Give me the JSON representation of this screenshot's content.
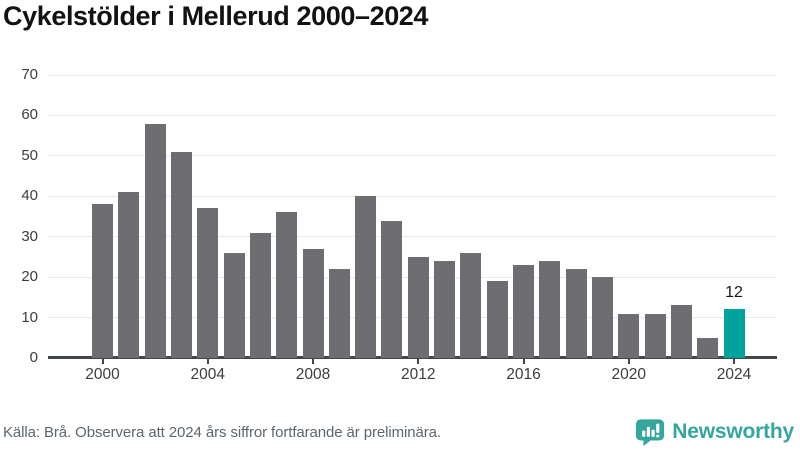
{
  "chart_data": {
    "type": "bar",
    "title": "Cykelstölder i Mellerud 2000–2024",
    "categories": [
      2000,
      2001,
      2002,
      2003,
      2004,
      2005,
      2006,
      2007,
      2008,
      2009,
      2010,
      2011,
      2012,
      2013,
      2014,
      2015,
      2016,
      2017,
      2018,
      2019,
      2020,
      2021,
      2022,
      2023,
      2024
    ],
    "values": [
      38,
      41,
      58,
      51,
      37,
      26,
      31,
      36,
      27,
      22,
      40,
      34,
      25,
      24,
      26,
      19,
      23,
      24,
      22,
      20,
      11,
      11,
      13,
      5,
      12
    ],
    "xlabel": "",
    "ylabel": "",
    "ylim": [
      0,
      70
    ],
    "yticks": [
      0,
      10,
      20,
      30,
      40,
      50,
      60,
      70
    ],
    "xtick_labels": [
      "2000",
      "2004",
      "2008",
      "2012",
      "2016",
      "2020",
      "2024"
    ],
    "grid": true,
    "legend": "none",
    "highlight": {
      "category": 2024,
      "value": 12,
      "label": "12"
    }
  },
  "colors": {
    "bar": "#6e6e72",
    "highlight": "#00a39b",
    "title_text": "#121212",
    "axis_text": "#3d3d3d",
    "annotation_text": "#1a1a1a",
    "gridline": "#e8e8e8",
    "axis_line": "#42474b",
    "source_text": "#5c666e",
    "brand": "#34a69e"
  },
  "footer": {
    "source": "Källa: Brå. Observera att 2024 års siffror fortfarande är preliminära.",
    "brand": "Newsworthy"
  }
}
